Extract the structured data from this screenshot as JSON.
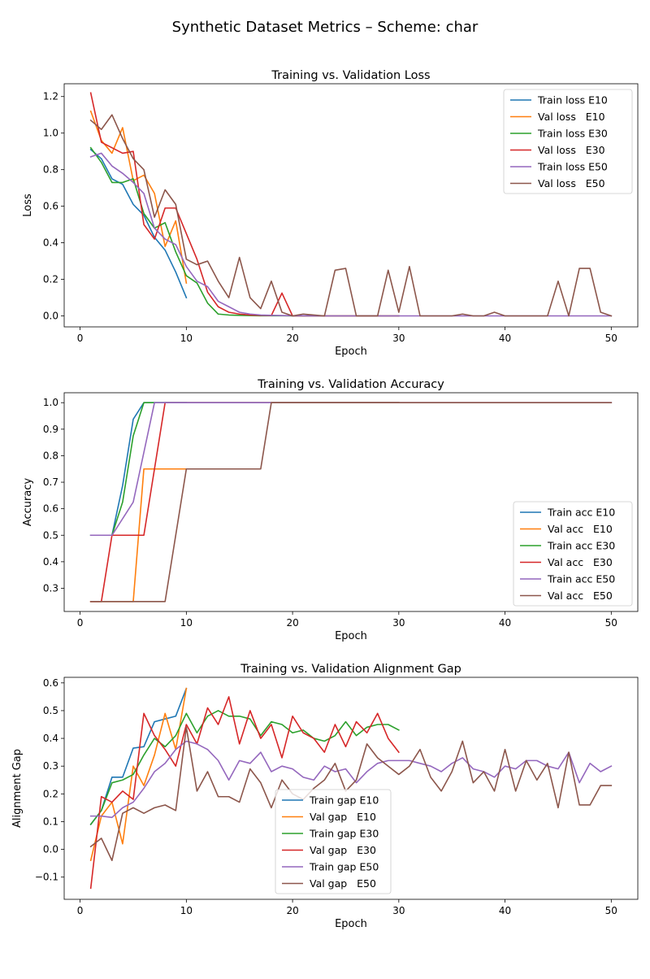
{
  "suptitle": "Synthetic Dataset Metrics – Scheme: char",
  "colors": {
    "E10_train": "#1f77b4",
    "E10_val": "#ff7f0e",
    "E30_train": "#2ca02c",
    "E30_val": "#d62728",
    "E50_train": "#9467bd",
    "E50_val": "#8c564b"
  },
  "chart_data": [
    {
      "type": "line",
      "title": "Training vs. Validation Loss",
      "xlabel": "Epoch",
      "ylabel": "Loss",
      "xlim": [
        -1.5,
        52.5
      ],
      "ylim": [
        -0.06,
        1.27
      ],
      "xticks": [
        0,
        10,
        20,
        30,
        40,
        50
      ],
      "xtick_labels": [
        "0",
        "10",
        "20",
        "30",
        "40",
        "50"
      ],
      "yticks": [
        0.0,
        0.2,
        0.4,
        0.6,
        0.8,
        1.0,
        1.2
      ],
      "ytick_labels": [
        "0.0",
        "0.2",
        "0.4",
        "0.6",
        "0.8",
        "1.0",
        "1.2"
      ],
      "legend_position": "top-right",
      "series": [
        {
          "name": "Train loss E10",
          "color_key": "E10_train",
          "x_start": 1,
          "values": [
            0.91,
            0.86,
            0.75,
            0.72,
            0.61,
            0.55,
            0.43,
            0.36,
            0.24,
            0.1
          ]
        },
        {
          "name": "Val loss   E10",
          "color_key": "E10_val",
          "x_start": 1,
          "values": [
            1.12,
            0.96,
            0.89,
            1.03,
            0.74,
            0.77,
            0.67,
            0.38,
            0.52,
            0.18
          ]
        },
        {
          "name": "Train loss E30",
          "color_key": "E30_train",
          "x_start": 1,
          "values": [
            0.92,
            0.84,
            0.73,
            0.73,
            0.75,
            0.56,
            0.48,
            0.51,
            0.35,
            0.22,
            0.18,
            0.07,
            0.01,
            0.005,
            0.003,
            0.002,
            0.001,
            0.001,
            0.001,
            0.0,
            0.0,
            0.0,
            0.0,
            0.0,
            0.0,
            0.0,
            0.0,
            0.0,
            0.0,
            0.0
          ]
        },
        {
          "name": "Val loss   E30",
          "color_key": "E30_val",
          "x_start": 1,
          "values": [
            1.22,
            0.95,
            0.92,
            0.89,
            0.9,
            0.5,
            0.42,
            0.59,
            0.59,
            0.45,
            0.31,
            0.13,
            0.05,
            0.02,
            0.01,
            0.005,
            0.003,
            0.002,
            0.125,
            0.0,
            0.0,
            0.0,
            0.0,
            0.0,
            0.0,
            0.0,
            0.0,
            0.0,
            0.0,
            0.0
          ]
        },
        {
          "name": "Train loss E50",
          "color_key": "E50_train",
          "x_start": 1,
          "values": [
            0.87,
            0.89,
            0.82,
            0.78,
            0.73,
            0.67,
            0.48,
            0.42,
            0.39,
            0.27,
            0.19,
            0.16,
            0.08,
            0.05,
            0.02,
            0.01,
            0.005,
            0.003,
            0.002,
            0.001,
            0.001,
            0.0,
            0.0,
            0.0,
            0.0,
            0.0,
            0.0,
            0.0,
            0.0,
            0.0,
            0.0,
            0.0,
            0.0,
            0.0,
            0.0,
            0.0,
            0.0,
            0.0,
            0.0,
            0.0,
            0.0,
            0.0,
            0.0,
            0.0,
            0.0,
            0.0,
            0.0,
            0.0,
            0.0,
            0.0
          ]
        },
        {
          "name": "Val loss   E50",
          "color_key": "E50_val",
          "x_start": 1,
          "values": [
            1.07,
            1.02,
            1.1,
            0.97,
            0.86,
            0.8,
            0.54,
            0.69,
            0.61,
            0.31,
            0.28,
            0.3,
            0.19,
            0.1,
            0.32,
            0.1,
            0.04,
            0.19,
            0.02,
            0.0,
            0.01,
            0.005,
            0.0,
            0.25,
            0.26,
            0.0,
            0.0,
            0.0,
            0.25,
            0.02,
            0.27,
            0.0,
            0.0,
            0.0,
            0.0,
            0.01,
            0.0,
            0.0,
            0.02,
            0.0,
            0.0,
            0.0,
            0.0,
            0.0,
            0.19,
            0.0,
            0.26,
            0.26,
            0.02,
            0.0
          ]
        }
      ]
    },
    {
      "type": "line",
      "title": "Training vs. Validation Accuracy",
      "xlabel": "Epoch",
      "ylabel": "Accuracy",
      "xlim": [
        -1.5,
        52.5
      ],
      "ylim": [
        0.2125,
        1.0375
      ],
      "xticks": [
        0,
        10,
        20,
        30,
        40,
        50
      ],
      "xtick_labels": [
        "0",
        "10",
        "20",
        "30",
        "40",
        "50"
      ],
      "yticks": [
        0.3,
        0.4,
        0.5,
        0.6,
        0.7,
        0.8,
        0.9,
        1.0
      ],
      "ytick_labels": [
        "0.3",
        "0.4",
        "0.5",
        "0.6",
        "0.7",
        "0.8",
        "0.9",
        "1.0"
      ],
      "legend_position": "lower-right",
      "series": [
        {
          "name": "Train acc E10",
          "color_key": "E10_train",
          "x_start": 1,
          "values": [
            0.5,
            0.5,
            0.5,
            0.6875,
            0.9375,
            1.0,
            1.0,
            1.0,
            1.0,
            1.0
          ]
        },
        {
          "name": "Val acc   E10",
          "color_key": "E10_val",
          "x_start": 1,
          "values": [
            0.25,
            0.25,
            0.25,
            0.25,
            0.25,
            0.75,
            0.75,
            0.75,
            0.75,
            0.75
          ]
        },
        {
          "name": "Train acc E30",
          "color_key": "E30_train",
          "x_start": 1,
          "values": [
            0.5,
            0.5,
            0.5,
            0.625,
            0.875,
            1.0,
            1.0,
            1.0,
            1.0,
            1.0,
            1.0,
            1.0,
            1.0,
            1.0,
            1.0,
            1.0,
            1.0,
            1.0,
            1.0,
            1.0,
            1.0,
            1.0,
            1.0,
            1.0,
            1.0,
            1.0,
            1.0,
            1.0,
            1.0,
            1.0
          ]
        },
        {
          "name": "Val acc   E30",
          "color_key": "E30_val",
          "x_start": 1,
          "values": [
            0.25,
            0.25,
            0.5,
            0.5,
            0.5,
            0.5,
            0.75,
            1.0,
            1.0,
            1.0,
            1.0,
            1.0,
            1.0,
            1.0,
            1.0,
            1.0,
            1.0,
            1.0,
            1.0,
            1.0,
            1.0,
            1.0,
            1.0,
            1.0,
            1.0,
            1.0,
            1.0,
            1.0,
            1.0,
            1.0
          ]
        },
        {
          "name": "Train acc E50",
          "color_key": "E50_train",
          "x_start": 1,
          "values": [
            0.5,
            0.5,
            0.5,
            0.5625,
            0.625,
            0.8125,
            1.0,
            1.0,
            1.0,
            1.0,
            1.0,
            1.0,
            1.0,
            1.0,
            1.0,
            1.0,
            1.0,
            1.0,
            1.0,
            1.0,
            1.0,
            1.0,
            1.0,
            1.0,
            1.0,
            1.0,
            1.0,
            1.0,
            1.0,
            1.0,
            1.0,
            1.0,
            1.0,
            1.0,
            1.0,
            1.0,
            1.0,
            1.0,
            1.0,
            1.0,
            1.0,
            1.0,
            1.0,
            1.0,
            1.0,
            1.0,
            1.0,
            1.0,
            1.0,
            1.0
          ]
        },
        {
          "name": "Val acc   E50",
          "color_key": "E50_val",
          "x_start": 1,
          "values": [
            0.25,
            0.25,
            0.25,
            0.25,
            0.25,
            0.25,
            0.25,
            0.25,
            0.5,
            0.75,
            0.75,
            0.75,
            0.75,
            0.75,
            0.75,
            0.75,
            0.75,
            1.0,
            1.0,
            1.0,
            1.0,
            1.0,
            1.0,
            1.0,
            1.0,
            1.0,
            1.0,
            1.0,
            1.0,
            1.0,
            1.0,
            1.0,
            1.0,
            1.0,
            1.0,
            1.0,
            1.0,
            1.0,
            1.0,
            1.0,
            1.0,
            1.0,
            1.0,
            1.0,
            1.0,
            1.0,
            1.0,
            1.0,
            1.0,
            1.0
          ]
        }
      ]
    },
    {
      "type": "line",
      "title": "Training vs. Validation Alignment Gap",
      "xlabel": "Epoch",
      "ylabel": "Alignment Gap",
      "xlim": [
        -1.5,
        52.5
      ],
      "ylim": [
        -0.18,
        0.62
      ],
      "xticks": [
        0,
        10,
        20,
        30,
        40,
        50
      ],
      "xtick_labels": [
        "0",
        "10",
        "20",
        "30",
        "40",
        "50"
      ],
      "yticks": [
        -0.1,
        0.0,
        0.1,
        0.2,
        0.3,
        0.4,
        0.5,
        0.6
      ],
      "ytick_labels": [
        "−0.1",
        "0.0",
        "0.1",
        "0.2",
        "0.3",
        "0.4",
        "0.5",
        "0.6"
      ],
      "legend_position": "lower-center",
      "series": [
        {
          "name": "Train gap E10",
          "color_key": "E10_train",
          "x_start": 1,
          "values": [
            0.09,
            0.14,
            0.26,
            0.26,
            0.365,
            0.37,
            0.46,
            0.47,
            0.48,
            0.58
          ]
        },
        {
          "name": "Val gap   E10",
          "color_key": "E10_val",
          "x_start": 1,
          "values": [
            -0.04,
            0.12,
            0.17,
            0.02,
            0.3,
            0.23,
            0.34,
            0.49,
            0.36,
            0.58
          ]
        },
        {
          "name": "Train gap E30",
          "color_key": "E30_train",
          "x_start": 1,
          "values": [
            0.09,
            0.14,
            0.24,
            0.25,
            0.27,
            0.34,
            0.4,
            0.37,
            0.41,
            0.49,
            0.42,
            0.48,
            0.5,
            0.48,
            0.48,
            0.47,
            0.41,
            0.46,
            0.45,
            0.42,
            0.43,
            0.4,
            0.39,
            0.41,
            0.46,
            0.41,
            0.44,
            0.45,
            0.45,
            0.43
          ]
        },
        {
          "name": "Val gap   E30",
          "color_key": "E30_val",
          "x_start": 1,
          "values": [
            -0.14,
            0.19,
            0.17,
            0.21,
            0.18,
            0.49,
            0.41,
            0.36,
            0.3,
            0.45,
            0.38,
            0.51,
            0.45,
            0.55,
            0.38,
            0.5,
            0.4,
            0.45,
            0.33,
            0.48,
            0.42,
            0.4,
            0.35,
            0.45,
            0.37,
            0.46,
            0.42,
            0.49,
            0.4,
            0.35
          ]
        },
        {
          "name": "Train gap E50",
          "color_key": "E50_train",
          "x_start": 1,
          "values": [
            0.12,
            0.12,
            0.115,
            0.15,
            0.17,
            0.22,
            0.28,
            0.31,
            0.36,
            0.39,
            0.38,
            0.36,
            0.32,
            0.25,
            0.32,
            0.31,
            0.35,
            0.28,
            0.3,
            0.29,
            0.26,
            0.25,
            0.3,
            0.28,
            0.29,
            0.24,
            0.28,
            0.31,
            0.32,
            0.32,
            0.32,
            0.31,
            0.3,
            0.28,
            0.31,
            0.33,
            0.29,
            0.28,
            0.26,
            0.3,
            0.29,
            0.32,
            0.32,
            0.3,
            0.29,
            0.35,
            0.24,
            0.31,
            0.28,
            0.3
          ]
        },
        {
          "name": "Val gap   E50",
          "color_key": "E50_val",
          "x_start": 1,
          "values": [
            0.01,
            0.04,
            -0.04,
            0.13,
            0.15,
            0.13,
            0.15,
            0.16,
            0.14,
            0.44,
            0.21,
            0.28,
            0.19,
            0.19,
            0.17,
            0.29,
            0.24,
            0.15,
            0.25,
            0.2,
            0.18,
            0.22,
            0.25,
            0.31,
            0.21,
            0.25,
            0.38,
            0.33,
            0.3,
            0.27,
            0.3,
            0.36,
            0.26,
            0.21,
            0.28,
            0.39,
            0.24,
            0.28,
            0.21,
            0.36,
            0.21,
            0.32,
            0.25,
            0.31,
            0.15,
            0.35,
            0.16,
            0.16,
            0.23,
            0.23
          ]
        }
      ]
    }
  ]
}
